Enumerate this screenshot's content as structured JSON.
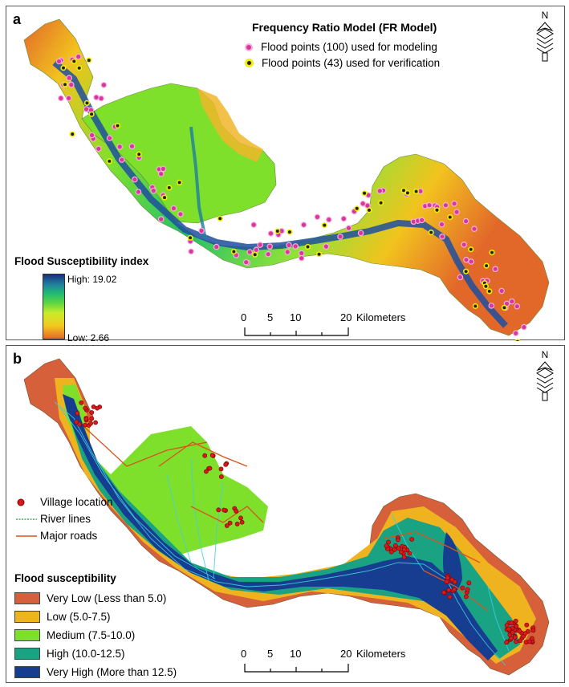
{
  "panel_a": {
    "letter": "a",
    "title": "Frequency Ratio Model (FR Model)",
    "legend_points": [
      {
        "label": "Flood points (100) used for modeling",
        "color": "#d9359b"
      },
      {
        "label": "Flood points (43) used for verification",
        "color": "#f2f000"
      }
    ],
    "index_title": "Flood Susceptibility index",
    "high_label": "High: 19.02",
    "low_label": "Low: 2.66",
    "north_label": "N",
    "scale": {
      "ticks": [
        "0",
        "5",
        "10",
        "20"
      ],
      "unit": "Kilometers"
    }
  },
  "panel_b": {
    "letter": "b",
    "north_label": "N",
    "feature_legend": [
      {
        "label": "Village location",
        "icon": "red-dot",
        "color": "#d7191c"
      },
      {
        "label": "River lines",
        "icon": "dotted-line",
        "color": "#3bb04a"
      },
      {
        "label": "Major roads",
        "icon": "line",
        "color": "#d9531e"
      }
    ],
    "class_title": "Flood susceptibility",
    "classes": [
      {
        "label": "Very Low (Less than 5.0)",
        "color": "#d6603a"
      },
      {
        "label": "Low (5.0-7.5)",
        "color": "#efb320"
      },
      {
        "label": "Medium (7.5-10.0)",
        "color": "#7fe02c"
      },
      {
        "label": "High (10.0-12.5)",
        "color": "#19a383"
      },
      {
        "label": "Very High (More than 12.5)",
        "color": "#163d8f"
      }
    ],
    "scale": {
      "ticks": [
        "0",
        "5",
        "10",
        "20"
      ],
      "unit": "Kilometers"
    }
  }
}
